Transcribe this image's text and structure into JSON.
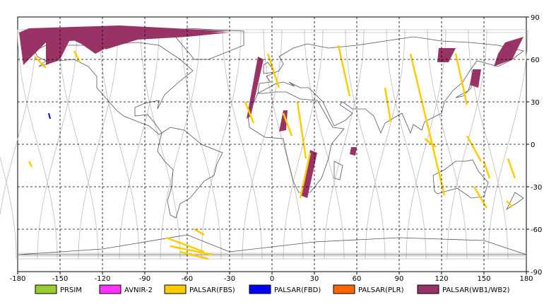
{
  "map": {
    "projection": "equirectangular",
    "lon_range": [
      -180,
      180
    ],
    "lat_range": [
      -90,
      90
    ],
    "x_ticks": [
      "-180",
      "-150",
      "-120",
      "-90",
      "-60",
      "-30",
      "0",
      "30",
      "60",
      "90",
      "120",
      "150",
      "180"
    ],
    "y_ticks": [
      "90",
      "60",
      "30",
      "0",
      "-30",
      "-60",
      "-90"
    ],
    "y_tick_values": [
      90,
      60,
      30,
      0,
      -30,
      -60,
      -90
    ],
    "x_tick_values": [
      -180,
      -150,
      -120,
      -90,
      -60,
      -30,
      0,
      30,
      60,
      90,
      120,
      150,
      180
    ],
    "grid": "dashed",
    "background_color": "#ffffff"
  },
  "legend": {
    "items": [
      {
        "label": "PRSIM",
        "color": "#99cc33"
      },
      {
        "label": "AVNIR-2",
        "color": "#ff33ff"
      },
      {
        "label": "PALSAR(FBS)",
        "color": "#ffcc00"
      },
      {
        "label": "PALSAR(FBD)",
        "color": "#0000ff"
      },
      {
        "label": "PALSAR(PLR)",
        "color": "#ff6600"
      },
      {
        "label": "PALSAR(WB1/WB2)",
        "color": "#993366"
      }
    ]
  },
  "swaths": {
    "wb": [
      [
        [
          -172,
          82
        ],
        [
          -108,
          84
        ],
        [
          -30,
          80
        ],
        [
          -160,
          72
        ],
        [
          -176,
          56
        ],
        [
          -179,
          79
        ]
      ],
      [
        [
          -160,
          73
        ],
        [
          -140,
          80
        ],
        [
          -150,
          60
        ],
        [
          -160,
          56
        ]
      ],
      [
        [
          -150,
          78
        ],
        [
          -100,
          83
        ],
        [
          -110,
          72
        ],
        [
          -125,
          64
        ],
        [
          -135,
          71
        ]
      ],
      [
        [
          -115,
          80
        ],
        [
          -30,
          79
        ],
        [
          -60,
          76
        ],
        [
          -95,
          74
        ],
        [
          -118,
          67
        ]
      ],
      [
        [
          -10,
          62
        ],
        [
          -6,
          60
        ],
        [
          -15,
          20
        ],
        [
          -18,
          18
        ]
      ],
      [
        [
          8,
          24
        ],
        [
          11,
          24
        ],
        [
          10,
          10
        ],
        [
          5,
          9
        ]
      ],
      [
        [
          27,
          -4
        ],
        [
          32,
          -6
        ],
        [
          25,
          -38
        ],
        [
          20,
          -36
        ]
      ],
      [
        [
          56,
          -2
        ],
        [
          60,
          -2
        ],
        [
          59,
          -8
        ],
        [
          55,
          -7
        ]
      ],
      [
        [
          118,
          68
        ],
        [
          130,
          68
        ],
        [
          125,
          58
        ],
        [
          117,
          58
        ]
      ],
      [
        [
          142,
          53
        ],
        [
          148,
          53
        ],
        [
          146,
          40
        ],
        [
          140,
          42
        ]
      ],
      [
        [
          165,
          72
        ],
        [
          178,
          76
        ],
        [
          170,
          60
        ],
        [
          157,
          55
        ],
        [
          160,
          64
        ]
      ]
    ],
    "fbs": [
      [
        [
          -168,
          62
        ],
        [
          -160,
          54
        ]
      ],
      [
        [
          -140,
          66
        ],
        [
          -136,
          58
        ]
      ],
      [
        [
          -172,
          -12
        ],
        [
          -170,
          -16
        ]
      ],
      [
        [
          -19,
          30
        ],
        [
          -13,
          15
        ]
      ],
      [
        [
          -3,
          64
        ],
        [
          5,
          40
        ]
      ],
      [
        [
          8,
          22
        ],
        [
          14,
          6
        ]
      ],
      [
        [
          18,
          30
        ],
        [
          24,
          -10
        ]
      ],
      [
        [
          27,
          -6
        ],
        [
          20,
          -38
        ]
      ],
      [
        [
          47,
          70
        ],
        [
          55,
          34
        ]
      ],
      [
        [
          80,
          40
        ],
        [
          84,
          16
        ]
      ],
      [
        [
          98,
          64
        ],
        [
          122,
          -36
        ]
      ],
      [
        [
          108,
          4
        ],
        [
          116,
          -2
        ]
      ],
      [
        [
          130,
          64
        ],
        [
          138,
          28
        ]
      ],
      [
        [
          138,
          6
        ],
        [
          148,
          -12
        ]
      ],
      [
        [
          150,
          -12
        ],
        [
          154,
          -24
        ]
      ],
      [
        [
          143,
          -30
        ],
        [
          152,
          -45
        ]
      ],
      [
        [
          167,
          -10
        ],
        [
          172,
          -24
        ]
      ],
      [
        [
          166,
          -40
        ],
        [
          170,
          -44
        ]
      ],
      [
        [
          -75,
          -66
        ],
        [
          -48,
          -76
        ]
      ],
      [
        [
          -72,
          -72
        ],
        [
          -42,
          -78
        ]
      ],
      [
        [
          -65,
          -76
        ],
        [
          -45,
          -81
        ]
      ],
      [
        [
          -55,
          -60
        ],
        [
          -48,
          -64
        ]
      ]
    ],
    "fbd": [
      [
        [
          -158,
          22
        ],
        [
          -157,
          18
        ]
      ]
    ]
  }
}
